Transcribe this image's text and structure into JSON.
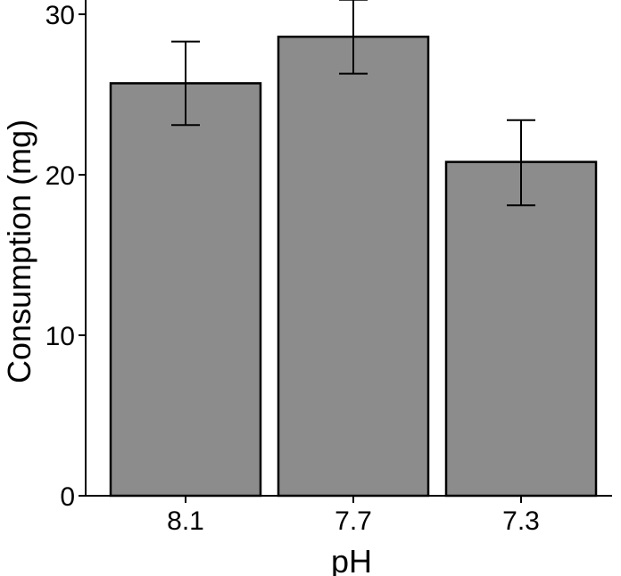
{
  "chart_data": {
    "type": "bar",
    "categories": [
      "8.1",
      "7.7",
      "7.3"
    ],
    "values": [
      25.7,
      28.6,
      20.8
    ],
    "error_low": [
      23.1,
      26.3,
      18.1
    ],
    "error_high": [
      28.3,
      30.9,
      23.4
    ],
    "title": "",
    "xlabel": "pH",
    "ylabel": "Consumption (mg)",
    "ylim": [
      0,
      30.9
    ],
    "yticks": [
      0,
      10,
      20,
      30
    ],
    "grid": false,
    "legend": "none",
    "bar_color": "#8c8c8c",
    "edge_color": "#000000"
  }
}
